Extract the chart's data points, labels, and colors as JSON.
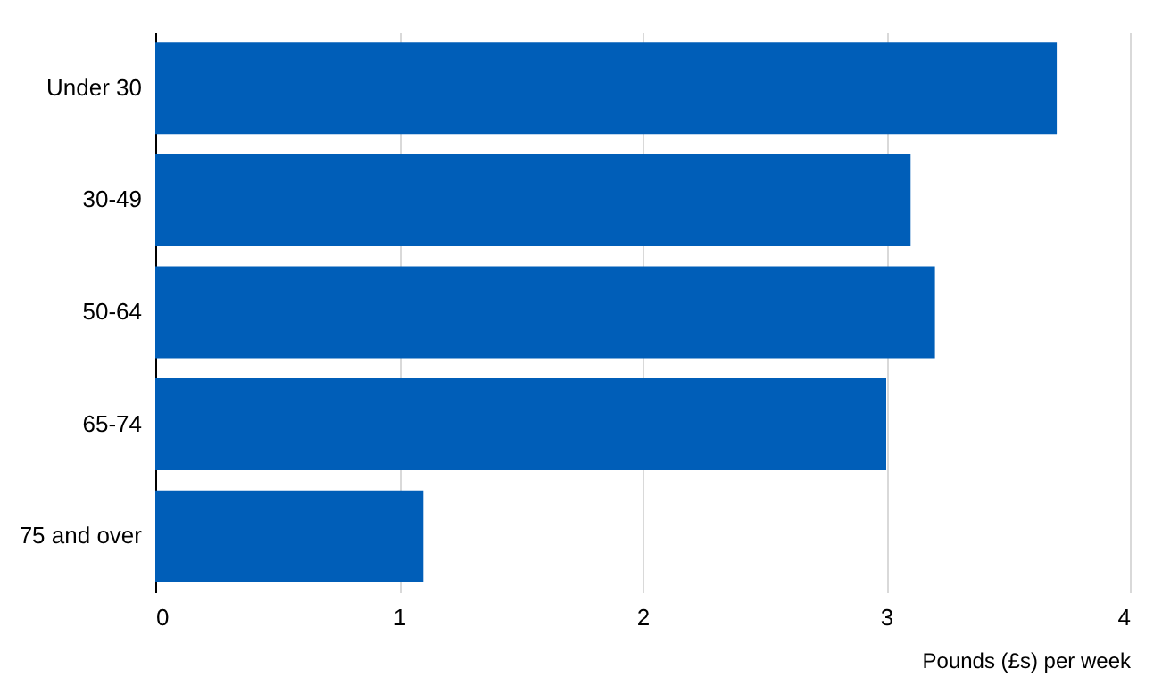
{
  "chart_data": {
    "type": "bar",
    "orientation": "horizontal",
    "categories": [
      "Under 30",
      "30-49",
      "50-64",
      "65-74",
      "75 and over"
    ],
    "values": [
      3.7,
      3.1,
      3.2,
      3.0,
      1.1
    ],
    "color": "#005eb8",
    "xlim": [
      0,
      4
    ],
    "xticks": [
      0,
      1,
      2,
      3,
      4
    ],
    "grid": "x",
    "xlabel": "Pounds (£s) per week"
  }
}
